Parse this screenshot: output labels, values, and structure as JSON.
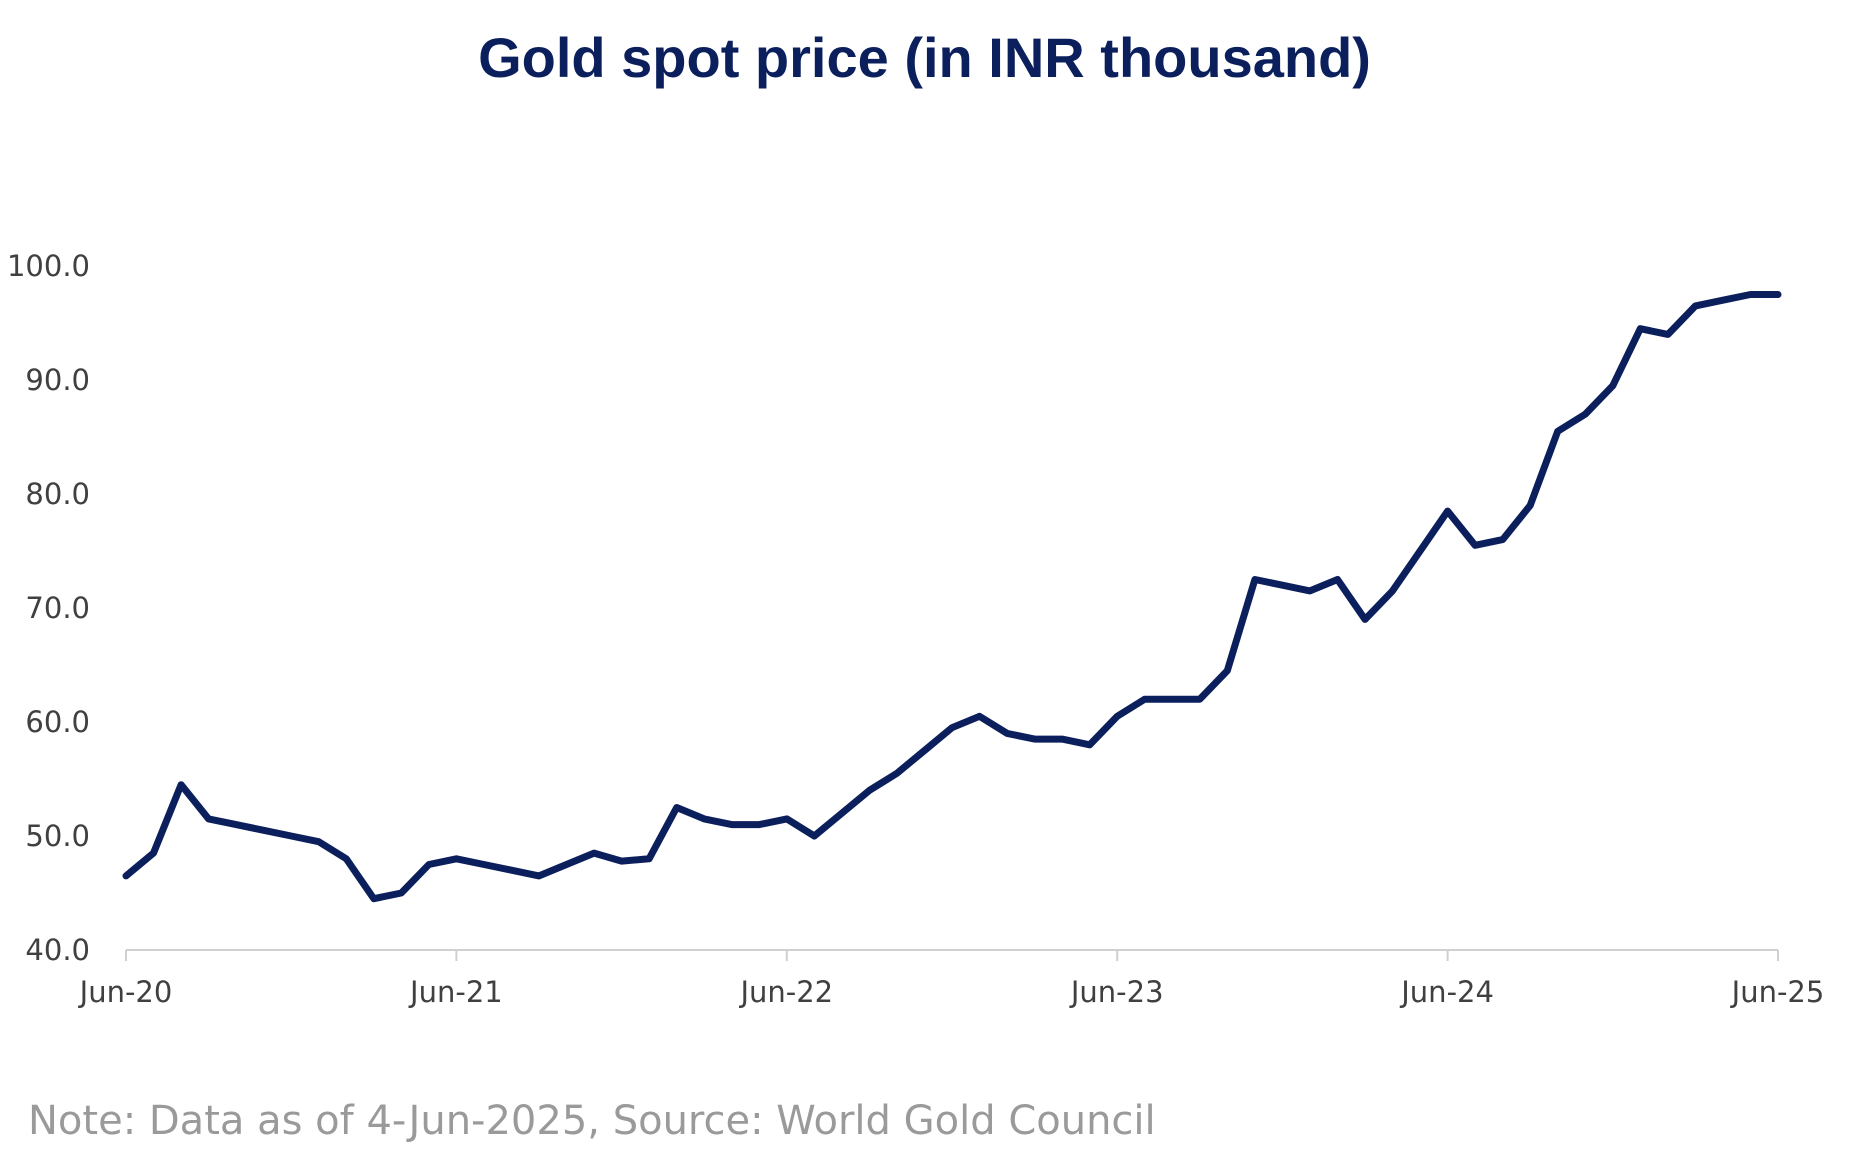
{
  "chart_data": {
    "type": "line",
    "title": "Gold spot price (in INR thousand)",
    "xlabel": "",
    "ylabel": "",
    "x_tick_labels": [
      "Jun-20",
      "Jun-21",
      "Jun-22",
      "Jun-23",
      "Jun-24",
      "Jun-25"
    ],
    "y_tick_labels": [
      "40.0",
      "50.0",
      "60.0",
      "70.0",
      "80.0",
      "90.0",
      "100.0"
    ],
    "ylim": [
      40,
      100
    ],
    "xlim": [
      "2020-06",
      "2025-06"
    ],
    "grid": false,
    "legend": "none",
    "series": [
      {
        "color": "#0b1f5c",
        "x": [
          "2020-06",
          "2020-07",
          "2020-08",
          "2020-09",
          "2020-10",
          "2020-11",
          "2020-12",
          "2021-01",
          "2021-02",
          "2021-03",
          "2021-04",
          "2021-05",
          "2021-06",
          "2021-07",
          "2021-08",
          "2021-09",
          "2021-10",
          "2021-11",
          "2021-12",
          "2022-01",
          "2022-02",
          "2022-03",
          "2022-04",
          "2022-05",
          "2022-06",
          "2022-07",
          "2022-08",
          "2022-09",
          "2022-10",
          "2022-11",
          "2022-12",
          "2023-01",
          "2023-02",
          "2023-03",
          "2023-04",
          "2023-05",
          "2023-06",
          "2023-07",
          "2023-08",
          "2023-09",
          "2023-10",
          "2023-11",
          "2023-12",
          "2024-01",
          "2024-02",
          "2024-03",
          "2024-04",
          "2024-05",
          "2024-06",
          "2024-07",
          "2024-08",
          "2024-09",
          "2024-10",
          "2024-11",
          "2024-12",
          "2025-01",
          "2025-02",
          "2025-03",
          "2025-04",
          "2025-05",
          "2025-06"
        ],
        "values": [
          46.5,
          48.5,
          54.5,
          51.5,
          51.0,
          50.5,
          50.0,
          49.5,
          48.0,
          44.5,
          45.0,
          47.5,
          48.0,
          47.5,
          47.0,
          46.5,
          47.5,
          48.5,
          47.8,
          48.0,
          52.5,
          51.5,
          51.0,
          51.0,
          51.5,
          50.0,
          52.0,
          54.0,
          55.5,
          57.5,
          59.5,
          60.5,
          59.0,
          58.5,
          58.5,
          58.0,
          60.5,
          62.0,
          62.0,
          62.0,
          64.5,
          72.5,
          72.0,
          71.5,
          72.5,
          69.0,
          71.5,
          75.0,
          78.5,
          75.5,
          76.0,
          79.0,
          85.5,
          87.0,
          89.5,
          94.5,
          94.0,
          96.5,
          97.0,
          97.5,
          97.5
        ]
      }
    ],
    "note": "Note: Data as of 4-Jun-2025, Source: World Gold Council"
  }
}
